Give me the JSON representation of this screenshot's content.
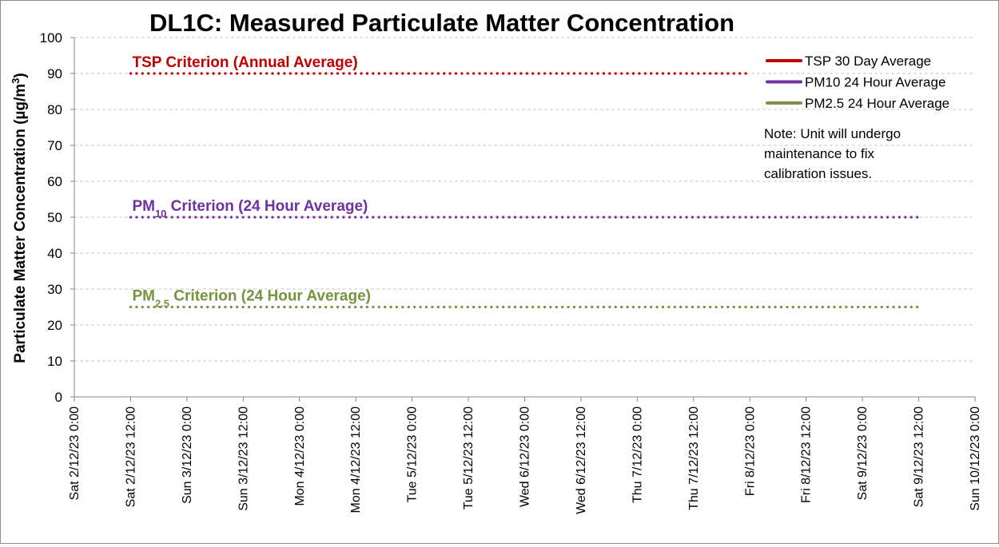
{
  "chart_data": {
    "type": "line",
    "title": "DL1C: Measured Particulate Matter Concentration",
    "ylabel": "Particulate Matter Concentration (µg/m³)",
    "ylabel_parts": {
      "main": "Particulate Matter Concentration (µg/m",
      "sup": "3",
      "close": ")"
    },
    "xlabel": "",
    "ylim": [
      0,
      100
    ],
    "ytick_step": 10,
    "y_ticks": [
      "0",
      "10",
      "20",
      "30",
      "40",
      "50",
      "60",
      "70",
      "80",
      "90",
      "100"
    ],
    "grid": "horizontal dashed",
    "x_ticks": [
      "Sat 2/12/23 0:00",
      "Sat 2/12/23 12:00",
      "Sun 3/12/23 0:00",
      "Sun 3/12/23 12:00",
      "Mon 4/12/23 0:00",
      "Mon 4/12/23 12:00",
      "Tue 5/12/23 0:00",
      "Tue 5/12/23 12:00",
      "Wed 6/12/23 0:00",
      "Wed 6/12/23 12:00",
      "Thu 7/12/23 0:00",
      "Thu 7/12/23 12:00",
      "Fri 8/12/23 0:00",
      "Fri 8/12/23 12:00",
      "Sat 9/12/23 0:00",
      "Sat 9/12/23 12:00",
      "Sun 10/12/23 0:00"
    ],
    "legend_position": "top-right",
    "series": [
      {
        "name": "TSP 30 Day Average",
        "color": "#c00000",
        "values": []
      },
      {
        "name": "PM10 24 Hour Average",
        "color": "#7030a0",
        "values": []
      },
      {
        "name": "PM2.5 24 Hour Average",
        "color": "#77933c",
        "values": []
      }
    ],
    "criteria": [
      {
        "label_main": "TSP Criterion (Annual Average)",
        "label_sub": "",
        "label_tail": "",
        "value": 90,
        "color": "#c00000",
        "x_start": "Sat 2/12/23 12:00",
        "x_end": "Fri 8/12/23 0:00"
      },
      {
        "label_main": "PM",
        "label_sub": "10",
        "label_tail": " Criterion (24 Hour Average)",
        "value": 50,
        "color": "#7030a0",
        "x_start": "Sat 2/12/23 12:00",
        "x_end": "Sat 9/12/23 12:00"
      },
      {
        "label_main": "PM",
        "label_sub": "2.5",
        "label_tail": " Criterion (24 Hour Average)",
        "value": 25,
        "color": "#77933c",
        "x_start": "Sat 2/12/23 12:00",
        "x_end": "Sat 9/12/23 12:00"
      }
    ],
    "note_lines": [
      "Note: Unit will undergo",
      "maintenance to fix",
      "calibration issues."
    ]
  }
}
